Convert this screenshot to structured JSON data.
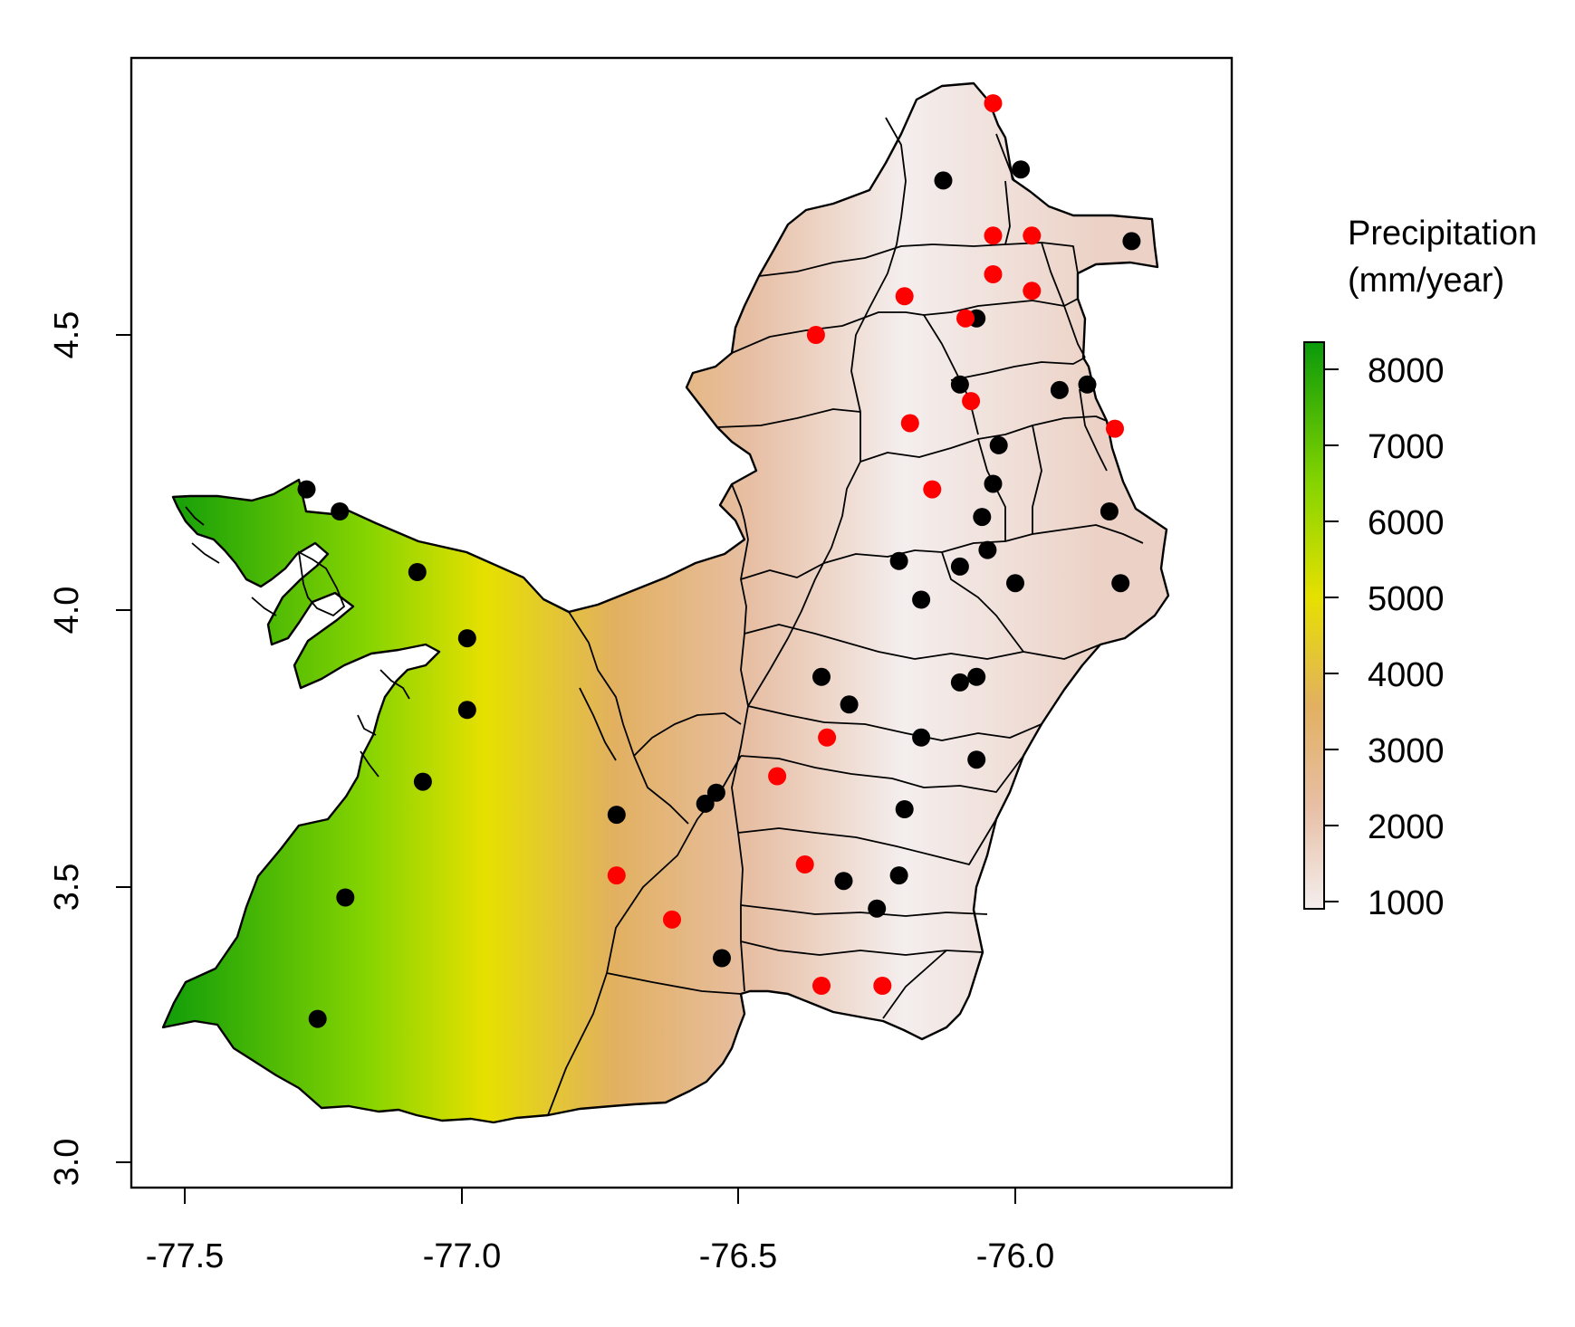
{
  "legend": {
    "title_line1": "Precipitation",
    "title_line2": "(mm/year)",
    "ticks": [
      "8000",
      "7000",
      "6000",
      "5000",
      "4000",
      "3000",
      "2000",
      "1000"
    ],
    "colors": [
      "#0a9a0a",
      "#86d400",
      "#e6e000",
      "#e2b060",
      "#e7bfa5",
      "#f4eeee"
    ]
  },
  "axes": {
    "x_ticks": [
      "-77.5",
      "-77.0",
      "-76.5",
      "-76.0"
    ],
    "y_ticks": [
      "3.0",
      "3.5",
      "4.0",
      "4.5"
    ]
  },
  "chart_data": {
    "type": "map",
    "xlim": [
      -77.6,
      -75.6
    ],
    "ylim": [
      2.95,
      4.95
    ],
    "stations_black": [
      [
        -77.28,
        4.22
      ],
      [
        -77.22,
        4.18
      ],
      [
        -77.08,
        4.07
      ],
      [
        -76.99,
        3.95
      ],
      [
        -76.99,
        3.82
      ],
      [
        -77.07,
        3.69
      ],
      [
        -77.21,
        3.48
      ],
      [
        -77.26,
        3.26
      ],
      [
        -76.72,
        3.63
      ],
      [
        -76.56,
        3.65
      ],
      [
        -76.54,
        3.67
      ],
      [
        -76.53,
        3.37
      ],
      [
        -76.13,
        4.78
      ],
      [
        -75.99,
        4.8
      ],
      [
        -75.79,
        4.67
      ],
      [
        -76.07,
        4.53
      ],
      [
        -76.1,
        4.41
      ],
      [
        -75.92,
        4.4
      ],
      [
        -75.87,
        4.41
      ],
      [
        -76.03,
        4.3
      ],
      [
        -76.04,
        4.23
      ],
      [
        -75.83,
        4.18
      ],
      [
        -76.06,
        4.17
      ],
      [
        -76.05,
        4.11
      ],
      [
        -76.21,
        4.09
      ],
      [
        -76.1,
        4.08
      ],
      [
        -76.0,
        4.05
      ],
      [
        -75.81,
        4.05
      ],
      [
        -76.17,
        4.02
      ],
      [
        -76.35,
        3.88
      ],
      [
        -76.1,
        3.87
      ],
      [
        -76.07,
        3.88
      ],
      [
        -76.3,
        3.83
      ],
      [
        -76.17,
        3.77
      ],
      [
        -76.07,
        3.73
      ],
      [
        -76.2,
        3.64
      ],
      [
        -76.31,
        3.51
      ],
      [
        -76.21,
        3.52
      ],
      [
        -76.25,
        3.46
      ]
    ],
    "stations_red": [
      [
        -76.04,
        4.92
      ],
      [
        -76.04,
        4.68
      ],
      [
        -75.97,
        4.68
      ],
      [
        -76.04,
        4.61
      ],
      [
        -75.97,
        4.58
      ],
      [
        -76.2,
        4.57
      ],
      [
        -76.09,
        4.53
      ],
      [
        -76.36,
        4.5
      ],
      [
        -76.08,
        4.38
      ],
      [
        -76.19,
        4.34
      ],
      [
        -75.82,
        4.33
      ],
      [
        -76.15,
        4.22
      ],
      [
        -76.34,
        3.77
      ],
      [
        -76.43,
        3.7
      ],
      [
        -76.38,
        3.54
      ],
      [
        -76.72,
        3.52
      ],
      [
        -76.62,
        3.44
      ],
      [
        -76.35,
        3.32
      ],
      [
        -76.24,
        3.32
      ]
    ]
  }
}
